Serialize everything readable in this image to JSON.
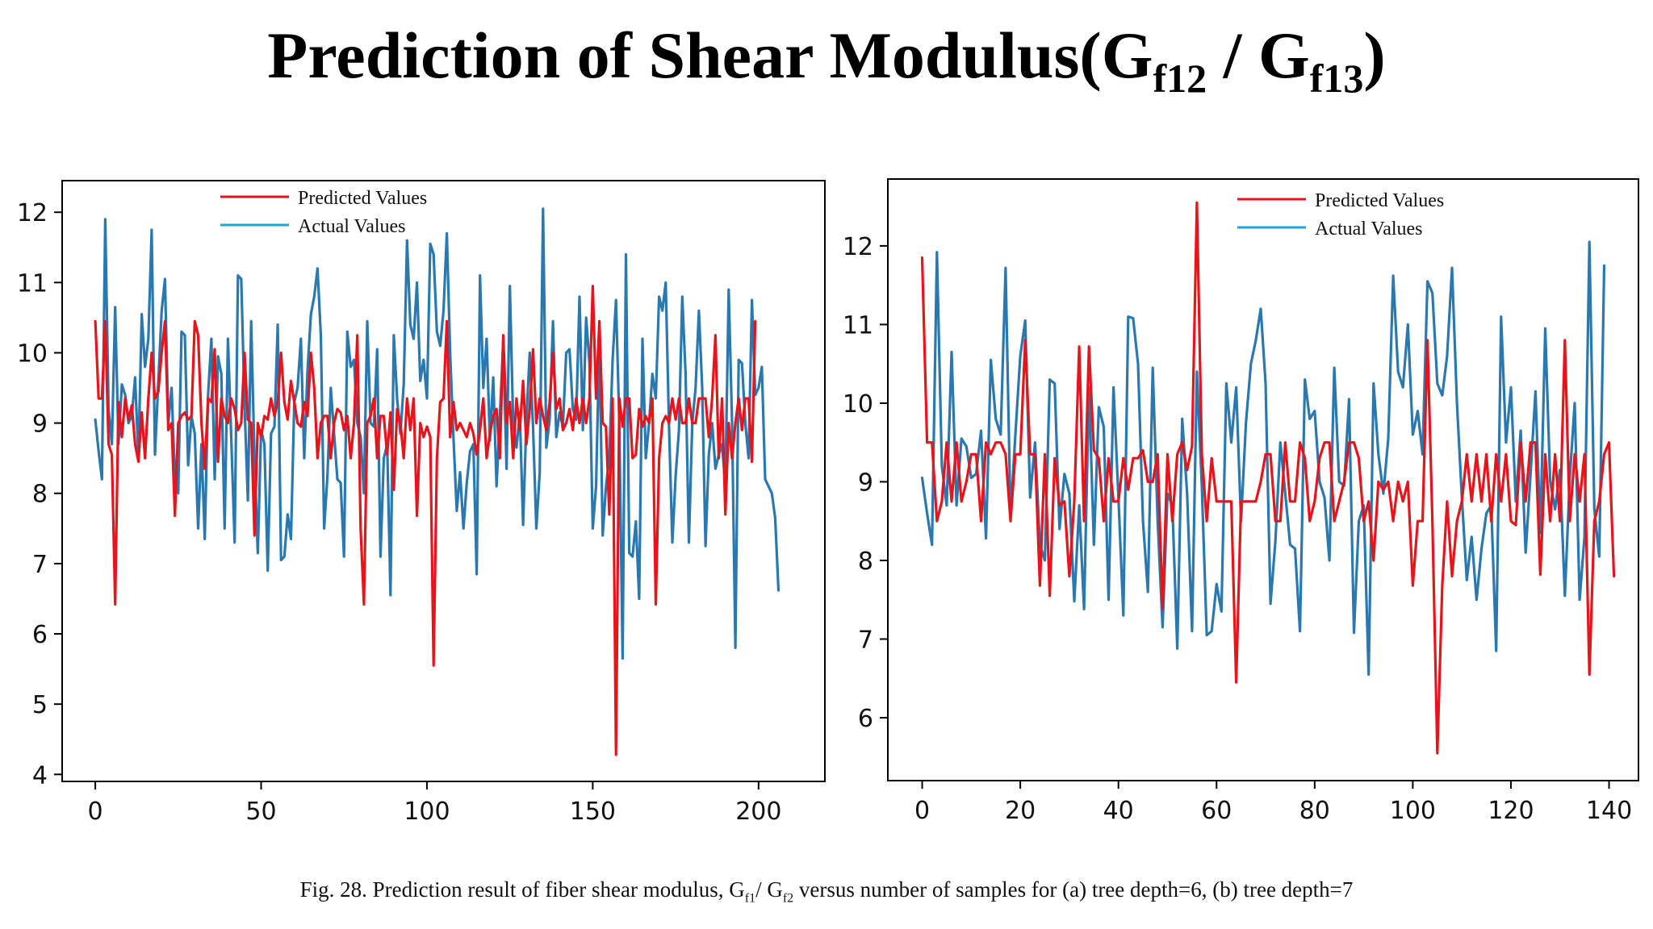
{
  "header": {
    "title_main": "Prediction of Shear Modulus(G",
    "title_sub1": "f12",
    "title_sep": " / G",
    "title_sub2": "f13",
    "title_end": ")"
  },
  "caption": {
    "part1": "Fig. 28. Prediction result of fiber shear modulus, G",
    "sub1": "f1",
    "part2": "/ G",
    "sub2": "f2",
    "part3": " versus number of samples for (a) tree depth=6, (b) tree depth=7"
  },
  "colors": {
    "predicted": "#e8141c",
    "actual": "#2a78b0",
    "legend_actual": "#1fa3e0"
  },
  "chart_data": [
    {
      "type": "line",
      "title": "",
      "xlabel": "",
      "ylabel": "",
      "xlim": [
        -10,
        220
      ],
      "ylim": [
        3.9,
        12.45
      ],
      "xticks": [
        0,
        50,
        100,
        150,
        200
      ],
      "yticks": [
        4,
        5,
        6,
        7,
        8,
        9,
        10,
        11,
        12
      ],
      "legend": "top-center",
      "series": [
        {
          "name": "Predicted Values",
          "x_start": 0,
          "values": [
            10.45,
            9.35,
            9.35,
            10.45,
            8.7,
            8.55,
            6.42,
            9.3,
            8.8,
            9.35,
            9.05,
            9.25,
            8.7,
            8.45,
            9.15,
            8.5,
            9.35,
            10.0,
            9.35,
            9.45,
            10.0,
            10.45,
            8.9,
            9.0,
            7.68,
            9.0,
            9.1,
            9.15,
            9.05,
            9.1,
            10.45,
            10.25,
            9.0,
            8.35,
            9.35,
            9.3,
            10.05,
            8.45,
            9.35,
            9.1,
            9.0,
            9.35,
            9.2,
            8.9,
            9.0,
            10.0,
            9.05,
            9.0,
            7.4,
            9.0,
            8.8,
            9.1,
            9.05,
            9.35,
            9.1,
            9.3,
            10.0,
            9.3,
            9.05,
            9.6,
            9.3,
            9.0,
            8.95,
            9.3,
            9.1,
            10.0,
            9.5,
            8.5,
            9.0,
            9.1,
            9.1,
            8.5,
            9.0,
            9.2,
            9.15,
            8.9,
            9.1,
            8.5,
            9.0,
            10.25,
            7.5,
            6.42,
            9.0,
            9.1,
            9.35,
            8.5,
            9.1,
            9.1,
            8.55,
            9.15,
            8.05,
            9.2,
            9.0,
            8.5,
            9.35,
            8.9,
            9.35,
            7.68,
            9.0,
            8.8,
            8.95,
            8.8,
            5.55,
            8.5,
            9.3,
            9.35,
            10.45,
            8.8,
            9.3,
            8.9,
            9.0,
            8.9,
            8.8,
            9.0,
            8.85,
            8.55,
            8.9,
            9.35,
            8.5,
            8.85,
            9.1,
            9.2,
            8.5,
            10.25,
            9.0,
            9.3,
            8.5,
            9.35,
            8.9,
            9.6,
            8.7,
            9.2,
            10.05,
            9.0,
            9.35,
            9.1,
            8.9,
            9.3,
            10.0,
            9.2,
            9.35,
            8.9,
            9.0,
            9.2,
            8.9,
            9.35,
            9.0,
            9.35,
            9.0,
            9.35,
            10.95,
            9.35,
            10.45,
            9.0,
            8.95,
            7.7,
            9.35,
            4.28,
            9.35,
            8.95,
            9.35,
            9.35,
            8.5,
            8.55,
            9.2,
            8.95,
            9.1,
            9.0,
            9.35,
            6.42,
            8.5,
            9.0,
            9.1,
            9.0,
            9.35,
            9.05,
            9.35,
            9.0,
            9.0,
            9.35,
            9.0,
            9.0,
            9.35,
            9.35,
            9.35,
            8.8,
            9.35,
            10.25,
            8.5,
            9.35,
            7.7,
            9.0,
            8.5,
            9.0,
            9.35,
            8.9,
            9.35,
            9.35,
            8.45,
            10.45
          ]
        },
        {
          "name": "Actual Values",
          "x_start": 0,
          "values": [
            9.05,
            8.6,
            8.2,
            11.9,
            9.2,
            8.7,
            10.65,
            8.7,
            9.55,
            9.4,
            9.0,
            9.1,
            9.65,
            8.5,
            10.55,
            9.8,
            10.2,
            11.75,
            8.55,
            9.6,
            10.6,
            11.05,
            9.0,
            9.5,
            8.2,
            8.0,
            10.3,
            10.25,
            8.4,
            9.1,
            8.85,
            7.5,
            8.7,
            7.35,
            9.4,
            10.2,
            8.2,
            9.95,
            9.7,
            7.5,
            10.2,
            8.8,
            7.3,
            11.1,
            11.05,
            9.25,
            7.9,
            10.45,
            8.5,
            7.15,
            8.9,
            8.7,
            6.9,
            8.85,
            8.95,
            10.4,
            7.05,
            7.1,
            7.7,
            7.35,
            9.3,
            9.5,
            10.2,
            8.5,
            9.75,
            10.55,
            10.8,
            11.2,
            10.25,
            7.5,
            8.25,
            9.5,
            8.85,
            8.2,
            8.15,
            7.1,
            10.3,
            9.8,
            9.9,
            9.0,
            8.8,
            8.0,
            10.45,
            9.0,
            8.95,
            10.05,
            7.1,
            8.5,
            8.7,
            6.55,
            10.25,
            9.35,
            8.85,
            9.55,
            11.6,
            10.4,
            10.2,
            11.0,
            9.6,
            9.9,
            9.35,
            11.55,
            11.4,
            10.3,
            10.1,
            10.6,
            11.7,
            10.0,
            8.8,
            7.75,
            8.3,
            7.5,
            8.15,
            8.6,
            8.7,
            6.85,
            11.1,
            9.5,
            10.2,
            8.75,
            9.65,
            8.1,
            9.1,
            10.15,
            8.35,
            10.95,
            9.0,
            8.65,
            9.15,
            7.55,
            9.05,
            10.0,
            8.95,
            7.5,
            8.3,
            12.05,
            8.65,
            9.05,
            10.45,
            8.8,
            9.15,
            8.95,
            10.0,
            10.05,
            9.2,
            9.05,
            10.8,
            8.9,
            10.5,
            9.85,
            7.5,
            8.1,
            10.2,
            7.4,
            8.1,
            8.5,
            9.9,
            10.75,
            9.0,
            5.65,
            11.4,
            7.15,
            7.1,
            7.6,
            6.5,
            10.2,
            8.5,
            9.0,
            9.7,
            9.35,
            10.8,
            10.6,
            11.0,
            8.95,
            7.3,
            8.25,
            8.9,
            10.8,
            9.7,
            7.3,
            9.0,
            9.5,
            10.6,
            9.5,
            7.25,
            8.55,
            9.0,
            8.35,
            8.55,
            8.7,
            8.1,
            10.9,
            9.0,
            5.8,
            9.9,
            9.85,
            9.0,
            8.5,
            10.75,
            9.4,
            9.5,
            9.8,
            8.2,
            8.1,
            8.0,
            7.65,
            6.62
          ]
        }
      ]
    },
    {
      "type": "line",
      "title": "",
      "xlabel": "",
      "ylabel": "",
      "xlim": [
        -7,
        146
      ],
      "ylim": [
        5.2,
        12.85
      ],
      "xticks": [
        0,
        20,
        40,
        60,
        80,
        100,
        120,
        140
      ],
      "yticks": [
        6,
        7,
        8,
        9,
        10,
        11,
        12
      ],
      "legend": "top-center",
      "series": [
        {
          "name": "Predicted Values",
          "x_start": 0,
          "values": [
            11.85,
            9.5,
            9.5,
            8.5,
            8.75,
            9.5,
            8.75,
            9.5,
            8.75,
            9.0,
            9.35,
            9.35,
            8.5,
            9.5,
            9.35,
            9.5,
            9.5,
            9.35,
            8.5,
            9.35,
            9.35,
            10.8,
            9.35,
            9.35,
            7.68,
            9.35,
            7.55,
            9.3,
            8.7,
            8.75,
            7.8,
            8.75,
            10.72,
            8.5,
            10.72,
            9.4,
            9.3,
            8.5,
            9.3,
            8.75,
            8.75,
            9.3,
            8.9,
            9.3,
            9.3,
            9.4,
            9.0,
            9.0,
            9.35,
            7.38,
            9.35,
            8.5,
            9.35,
            9.5,
            9.15,
            9.45,
            12.55,
            9.35,
            8.5,
            9.3,
            8.75,
            8.75,
            8.75,
            8.75,
            6.45,
            8.75,
            8.75,
            8.75,
            8.75,
            9.0,
            9.35,
            9.35,
            8.5,
            8.5,
            9.5,
            8.75,
            8.75,
            9.5,
            9.3,
            8.5,
            8.75,
            9.3,
            9.5,
            9.5,
            8.5,
            8.75,
            9.0,
            9.5,
            9.5,
            9.3,
            8.5,
            8.75,
            8.0,
            9.0,
            8.9,
            9.0,
            8.5,
            9.0,
            8.75,
            9.0,
            7.68,
            8.5,
            8.5,
            10.8,
            8.5,
            5.55,
            7.68,
            8.75,
            7.8,
            8.5,
            8.75,
            9.35,
            8.75,
            9.35,
            8.75,
            9.35,
            8.5,
            9.35,
            8.75,
            9.35,
            8.5,
            8.45,
            9.5,
            8.75,
            9.5,
            9.5,
            7.82,
            9.35,
            8.5,
            9.35,
            8.5,
            10.8,
            8.5,
            9.35,
            8.75,
            9.35,
            6.55,
            8.5,
            8.75,
            9.35,
            9.5,
            7.8
          ]
        },
        {
          "name": "Actual Values",
          "x_start": 0,
          "values": [
            9.05,
            8.6,
            8.2,
            11.92,
            9.2,
            8.7,
            10.65,
            8.7,
            9.55,
            9.45,
            9.05,
            9.1,
            9.65,
            8.28,
            10.55,
            9.8,
            9.6,
            11.72,
            8.55,
            9.6,
            10.6,
            11.05,
            8.8,
            9.5,
            8.2,
            8.0,
            10.3,
            10.25,
            8.4,
            9.1,
            8.85,
            7.48,
            8.7,
            7.38,
            10.2,
            8.2,
            9.95,
            9.7,
            7.5,
            10.2,
            8.8,
            7.3,
            11.1,
            11.08,
            10.5,
            8.5,
            7.6,
            10.45,
            8.5,
            7.15,
            8.85,
            8.7,
            6.88,
            9.8,
            8.85,
            7.1,
            10.4,
            8.95,
            7.05,
            7.1,
            7.7,
            7.35,
            10.25,
            9.5,
            10.2,
            8.5,
            9.75,
            10.5,
            10.8,
            11.2,
            10.25,
            7.45,
            8.25,
            9.5,
            8.85,
            8.2,
            8.15,
            7.1,
            10.3,
            9.8,
            9.9,
            9.0,
            8.8,
            8.0,
            10.45,
            9.0,
            8.95,
            10.05,
            7.08,
            8.5,
            8.7,
            6.55,
            10.25,
            9.35,
            8.85,
            9.55,
            11.62,
            10.4,
            10.2,
            11.0,
            9.6,
            9.9,
            9.35,
            11.55,
            11.4,
            10.25,
            10.1,
            10.6,
            11.72,
            10.0,
            8.8,
            7.75,
            8.3,
            7.5,
            8.15,
            8.6,
            8.7,
            6.85,
            11.1,
            9.5,
            10.2,
            8.75,
            9.65,
            8.1,
            9.1,
            10.15,
            8.35,
            10.95,
            9.0,
            8.65,
            9.15,
            7.55,
            9.05,
            10.0,
            7.5,
            8.3,
            12.05,
            8.65,
            8.05,
            11.75
          ]
        }
      ]
    }
  ]
}
